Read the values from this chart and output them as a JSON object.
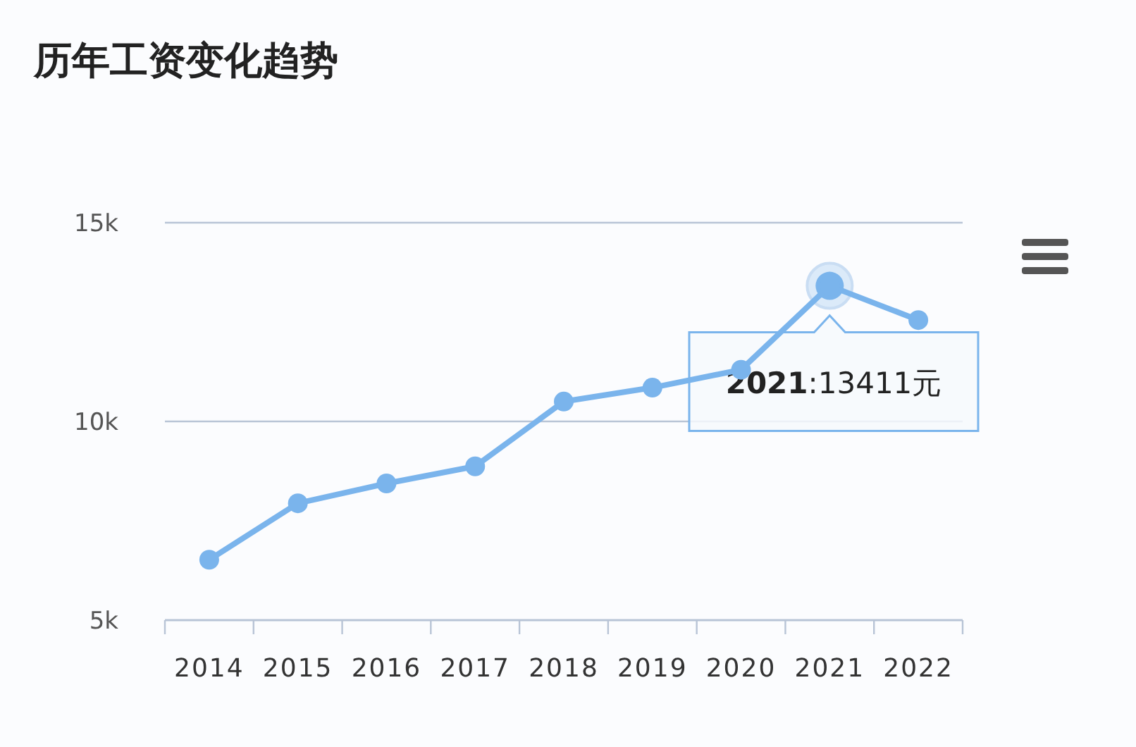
{
  "chart_data": {
    "type": "line",
    "title": "历年工资变化趋势",
    "categories": [
      "2014",
      "2015",
      "2016",
      "2017",
      "2018",
      "2019",
      "2020",
      "2021",
      "2022"
    ],
    "series": [
      {
        "color": "#7ab4ec",
        "values": [
          6520,
          7940,
          8440,
          8870,
          10500,
          10850,
          11300,
          13411,
          12550
        ]
      }
    ],
    "ylim": [
      5000,
      15000
    ],
    "yticks": [
      {
        "value": 5000,
        "label": "5k"
      },
      {
        "value": 10000,
        "label": "10k"
      },
      {
        "value": 15000,
        "label": "15k"
      }
    ],
    "grid": "y",
    "marker": "circle",
    "line_style": "solid",
    "annotations": [
      {
        "text": "2021:13411元",
        "x": "2021",
        "y": 13411
      }
    ]
  }
}
